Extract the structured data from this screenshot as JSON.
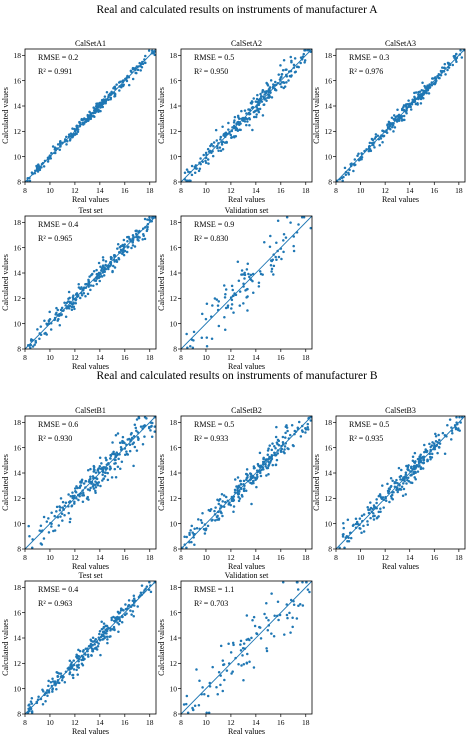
{
  "figure_a_title": "Real and calculated results on instruments of manufacturer A",
  "figure_b_title": "Real and calculated results on instruments of manufacturer B",
  "colors": {
    "points": "#1f77b4",
    "diagonal": "#1f77b4",
    "axes": "#000000"
  },
  "chart_data": [
    {
      "type": "scatter",
      "title": "CalSetA1",
      "xlabel": "Real values",
      "ylabel": "Calculated values",
      "xlim": [
        8,
        18.5
      ],
      "ylim": [
        8,
        18.5
      ],
      "xticks": [
        "8",
        "10",
        "12",
        "14",
        "16",
        "18"
      ],
      "yticks": [
        "8",
        "10",
        "12",
        "14",
        "16",
        "18"
      ],
      "metrics": [
        "RMSE = 0.2",
        "R² = 0.991"
      ],
      "rmse": 0.2,
      "r2": 0.991,
      "n_points": 260,
      "diagonal_line": true
    },
    {
      "type": "scatter",
      "title": "CalSetA2",
      "xlabel": "Real values",
      "ylabel": "Calculated values",
      "xlim": [
        8,
        18.5
      ],
      "ylim": [
        8,
        18.5
      ],
      "xticks": [
        "8",
        "10",
        "12",
        "14",
        "16",
        "18"
      ],
      "yticks": [
        "8",
        "10",
        "12",
        "14",
        "16",
        "18"
      ],
      "metrics": [
        "RMSE = 0.5",
        "R² = 0.950"
      ],
      "rmse": 0.5,
      "r2": 0.95,
      "n_points": 260,
      "diagonal_line": true
    },
    {
      "type": "scatter",
      "title": "CalSetA3",
      "xlabel": "Real values",
      "ylabel": "Calculated values",
      "xlim": [
        8,
        18.5
      ],
      "ylim": [
        8,
        18.5
      ],
      "xticks": [
        "8",
        "10",
        "12",
        "14",
        "16",
        "18"
      ],
      "yticks": [
        "8",
        "10",
        "12",
        "14",
        "16",
        "18"
      ],
      "metrics": [
        "RMSE = 0.3",
        "R² = 0.976"
      ],
      "rmse": 0.3,
      "r2": 0.976,
      "n_points": 260,
      "diagonal_line": true
    },
    {
      "type": "scatter",
      "title": "Test set",
      "xlabel": "Real values",
      "ylabel": "Calculated values",
      "xlim": [
        8,
        18.5
      ],
      "ylim": [
        8,
        18.5
      ],
      "xticks": [
        "8",
        "10",
        "12",
        "14",
        "16",
        "18"
      ],
      "yticks": [
        "8",
        "10",
        "12",
        "14",
        "16",
        "18"
      ],
      "metrics": [
        "RMSE = 0.4",
        "R² = 0.965"
      ],
      "rmse": 0.4,
      "r2": 0.965,
      "n_points": 260,
      "diagonal_line": true
    },
    {
      "type": "scatter",
      "title": "Validation set",
      "xlabel": "Real values",
      "ylabel": "Calculated values",
      "xlim": [
        8,
        18.5
      ],
      "ylim": [
        8,
        18.5
      ],
      "xticks": [
        "8",
        "10",
        "12",
        "14",
        "16",
        "18"
      ],
      "yticks": [
        "8",
        "10",
        "12",
        "14",
        "16",
        "18"
      ],
      "metrics": [
        "RMSE = 0.9",
        "R² = 0.830"
      ],
      "rmse": 0.9,
      "r2": 0.83,
      "n_points": 110,
      "diagonal_line": true
    },
    {
      "type": "scatter",
      "title": "CalSetB1",
      "xlabel": "Real values",
      "ylabel": "Calculated values",
      "xlim": [
        8,
        18.5
      ],
      "ylim": [
        8,
        18.5
      ],
      "xticks": [
        "8",
        "10",
        "12",
        "14",
        "16",
        "18"
      ],
      "yticks": [
        "8",
        "10",
        "12",
        "14",
        "16",
        "18"
      ],
      "metrics": [
        "RMSE = 0.6",
        "R² = 0.930"
      ],
      "rmse": 0.6,
      "r2": 0.93,
      "n_points": 260,
      "diagonal_line": true
    },
    {
      "type": "scatter",
      "title": "CalSetB2",
      "xlabel": "Real values",
      "ylabel": "Calculated values",
      "xlim": [
        8,
        18.5
      ],
      "ylim": [
        8,
        18.5
      ],
      "xticks": [
        "8",
        "10",
        "12",
        "14",
        "16",
        "18"
      ],
      "yticks": [
        "8",
        "10",
        "12",
        "14",
        "16",
        "18"
      ],
      "metrics": [
        "RMSE = 0.5",
        "R² = 0.933"
      ],
      "rmse": 0.5,
      "r2": 0.933,
      "n_points": 260,
      "diagonal_line": true
    },
    {
      "type": "scatter",
      "title": "CalSetB3",
      "xlabel": "Real values",
      "ylabel": "Calculated values",
      "xlim": [
        8,
        18.5
      ],
      "ylim": [
        8,
        18.5
      ],
      "xticks": [
        "8",
        "10",
        "12",
        "14",
        "16",
        "18"
      ],
      "yticks": [
        "8",
        "10",
        "12",
        "14",
        "16",
        "18"
      ],
      "metrics": [
        "RMSE = 0.5",
        "R² = 0.935"
      ],
      "rmse": 0.5,
      "r2": 0.935,
      "n_points": 260,
      "diagonal_line": true
    },
    {
      "type": "scatter",
      "title": "Test set",
      "xlabel": "Real values",
      "ylabel": "Calculated values",
      "xlim": [
        8,
        18.5
      ],
      "ylim": [
        8,
        18.5
      ],
      "xticks": [
        "8",
        "10",
        "12",
        "14",
        "16",
        "18"
      ],
      "yticks": [
        "8",
        "10",
        "12",
        "14",
        "16",
        "18"
      ],
      "metrics": [
        "RMSE = 0.4",
        "R² = 0.963"
      ],
      "rmse": 0.4,
      "r2": 0.963,
      "n_points": 260,
      "diagonal_line": true
    },
    {
      "type": "scatter",
      "title": "Validation set",
      "xlabel": "Real values",
      "ylabel": "Calculated values",
      "xlim": [
        8,
        18.5
      ],
      "ylim": [
        8,
        18.5
      ],
      "xticks": [
        "8",
        "10",
        "12",
        "14",
        "16",
        "18"
      ],
      "yticks": [
        "8",
        "10",
        "12",
        "14",
        "16",
        "18"
      ],
      "metrics": [
        "RMSE = 1.1",
        "R² = 0.703"
      ],
      "rmse": 1.1,
      "r2": 0.703,
      "n_points": 110,
      "diagonal_line": true
    }
  ]
}
